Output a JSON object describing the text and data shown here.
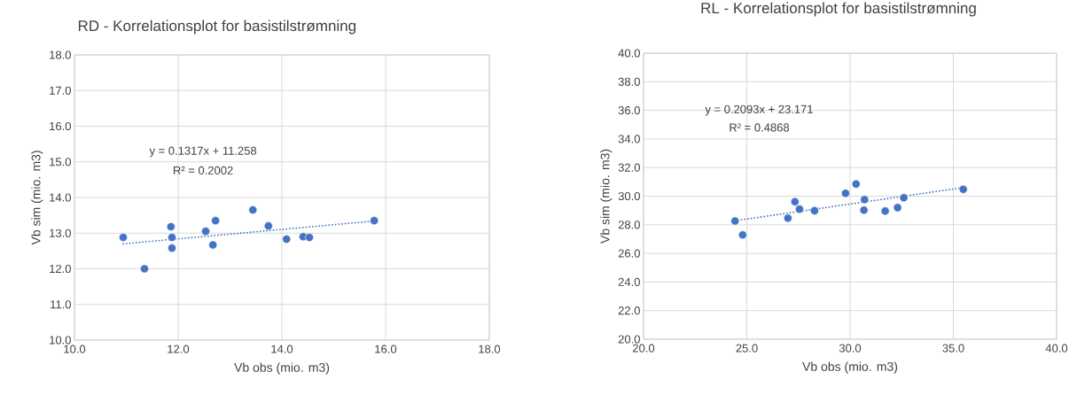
{
  "chart_data": [
    {
      "type": "scatter",
      "title": "RD - Korrelationsplot for basistilstrømning",
      "xlabel": "Vb obs (mio. m3)",
      "ylabel": "Vb sim (mio. m3)",
      "xlim": [
        10,
        18
      ],
      "ylim": [
        10,
        18
      ],
      "xticks": [
        {
          "value": 10,
          "label": "10.0"
        },
        {
          "value": 12,
          "label": "12.0"
        },
        {
          "value": 14,
          "label": "14.0"
        },
        {
          "value": 16,
          "label": "16.0"
        },
        {
          "value": 18,
          "label": "18.0"
        }
      ],
      "yticks": [
        {
          "value": 10,
          "label": "10.0"
        },
        {
          "value": 11,
          "label": "11.0"
        },
        {
          "value": 12,
          "label": "12.0"
        },
        {
          "value": 13,
          "label": "13.0"
        },
        {
          "value": 14,
          "label": "14.0"
        },
        {
          "value": 15,
          "label": "15.0"
        },
        {
          "value": 16,
          "label": "16.0"
        },
        {
          "value": 17,
          "label": "17.0"
        },
        {
          "value": 18,
          "label": "18.0"
        }
      ],
      "grid": true,
      "legend": false,
      "annotations": [
        "y = 0.1317x + 11.258",
        "R² = 0.2002"
      ],
      "series": [
        {
          "color": "#4472c4",
          "marker": "circle",
          "x": [
            10.94,
            11.35,
            11.86,
            11.88,
            11.88,
            12.53,
            12.72,
            12.67,
            13.44,
            13.74,
            14.09,
            14.41,
            14.53,
            15.78
          ],
          "values": [
            12.88,
            12.0,
            13.18,
            12.88,
            12.58,
            13.05,
            13.35,
            12.67,
            13.65,
            13.2,
            12.83,
            12.9,
            12.88,
            13.35
          ]
        },
        {
          "type": "line",
          "color": "#4472c4",
          "marker": "none",
          "line_style": "dotted",
          "x": [
            10.94,
            15.78
          ],
          "values": [
            12.7,
            13.34
          ]
        }
      ]
    },
    {
      "type": "scatter",
      "title": "RL - Korrelationsplot for basistilstrømning",
      "xlabel": "Vb obs (mio. m3)",
      "ylabel": "Vb sim (mio. m3)",
      "xlim": [
        20,
        40
      ],
      "ylim": [
        20,
        40
      ],
      "xticks": [
        {
          "value": 20,
          "label": "20.0"
        },
        {
          "value": 25,
          "label": "25.0"
        },
        {
          "value": 30,
          "label": "30.0"
        },
        {
          "value": 35,
          "label": "35.0"
        },
        {
          "value": 40,
          "label": "40.0"
        }
      ],
      "yticks": [
        {
          "value": 20,
          "label": "20.0"
        },
        {
          "value": 22,
          "label": "22.0"
        },
        {
          "value": 24,
          "label": "24.0"
        },
        {
          "value": 26,
          "label": "26.0"
        },
        {
          "value": 28,
          "label": "28.0"
        },
        {
          "value": 30,
          "label": "30.0"
        },
        {
          "value": 32,
          "label": "32.0"
        },
        {
          "value": 34,
          "label": "34.0"
        },
        {
          "value": 36,
          "label": "36.0"
        },
        {
          "value": 38,
          "label": "38.0"
        },
        {
          "value": 40,
          "label": "40.0"
        }
      ],
      "grid": true,
      "legend": false,
      "annotations": [
        "y = 0.2093x + 23.171",
        "R² = 0.4868"
      ],
      "series": [
        {
          "color": "#4472c4",
          "marker": "circle",
          "x": [
            24.43,
            24.8,
            26.99,
            27.33,
            27.55,
            28.28,
            29.78,
            30.29,
            30.7,
            30.67,
            31.7,
            32.3,
            32.6,
            35.48
          ],
          "values": [
            28.26,
            27.29,
            28.46,
            29.61,
            29.09,
            28.98,
            30.2,
            30.85,
            29.76,
            29.02,
            28.96,
            29.2,
            29.89,
            30.48
          ]
        },
        {
          "type": "line",
          "color": "#4472c4",
          "marker": "none",
          "line_style": "dotted",
          "x": [
            24.43,
            35.48
          ],
          "values": [
            28.28,
            30.6
          ]
        }
      ]
    }
  ]
}
